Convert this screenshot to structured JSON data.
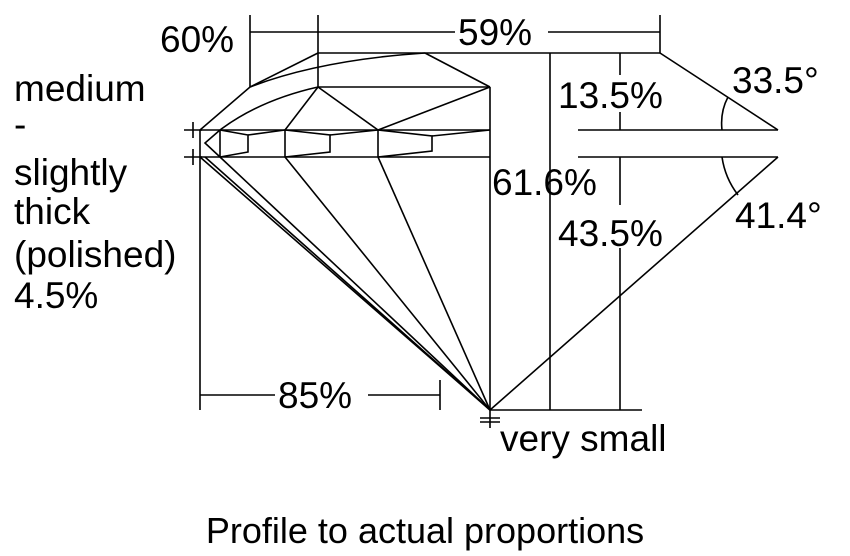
{
  "measurements": {
    "crown_angle_offset": "60%",
    "table": "59%",
    "crown_height": "13.5%",
    "crown_angle": "33.5°",
    "total_depth": "61.6%",
    "pavilion_depth": "43.5%",
    "pavilion_angle": "41.4°",
    "lower_half": "85%",
    "culet": "very small"
  },
  "girdle": {
    "lines": [
      "medium",
      "-",
      "slightly",
      "thick",
      "(polished)",
      "4.5%"
    ]
  },
  "caption": "Profile to actual proportions"
}
